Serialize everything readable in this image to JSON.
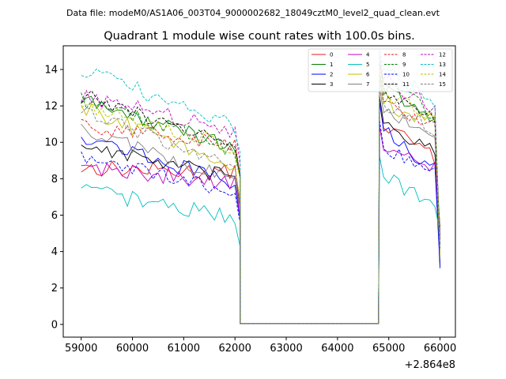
{
  "chart_data": {
    "type": "line",
    "suptitle": "Data file: modeM0/AS1A06_003T04_9000002682_18049cztM0_level2_quad_clean.evt",
    "title": "Quadrant 1 module wise count rates with 100.0s bins.",
    "xlabel": "",
    "ylabel": "",
    "x_offset_label": "+2.864e8",
    "xlim": [
      58650,
      66300
    ],
    "ylim": [
      -0.7,
      15.3
    ],
    "xticks": [
      59000,
      60000,
      61000,
      62000,
      63000,
      64000,
      65000,
      66000
    ],
    "xtick_labels": [
      "59000",
      "60000",
      "61000",
      "62000",
      "63000",
      "64000",
      "65000",
      "66000"
    ],
    "yticks": [
      0,
      2,
      4,
      6,
      8,
      10,
      12,
      14
    ],
    "ytick_labels": [
      "0",
      "2",
      "4",
      "6",
      "8",
      "10",
      "12",
      "14"
    ],
    "legend_position": "top-right",
    "bin_width_s": 100,
    "gap_segment": {
      "x": [
        62100,
        62200,
        64700,
        64800
      ],
      "value": 0.05
    },
    "segment1": {
      "x_start": 59000,
      "x_end": 62100,
      "step": 100
    },
    "segment2": {
      "x_start": 64800,
      "x_end": 66000,
      "step": 100
    },
    "series": [
      {
        "name": "0",
        "color": "#e41a1c",
        "dash": "solid",
        "level1": 8.6,
        "slope1": -0.3,
        "level2": 11.0,
        "slope2": 2.0
      },
      {
        "name": "1",
        "color": "#008000",
        "dash": "solid",
        "level1": 12.3,
        "slope1": -2.6,
        "level2": 12.8,
        "slope2": 1.7
      },
      {
        "name": "2",
        "color": "#0000ff",
        "dash": "solid",
        "level1": 10.4,
        "slope1": -2.8,
        "level2": 10.8,
        "slope2": 2.6
      },
      {
        "name": "3",
        "color": "#000000",
        "dash": "solid",
        "level1": 9.9,
        "slope1": -2.0,
        "level2": 11.2,
        "slope2": 2.0
      },
      {
        "name": "4",
        "color": "#bf00bf",
        "dash": "solid",
        "level1": 8.7,
        "slope1": -1.0,
        "level2": 9.7,
        "slope2": 1.3
      },
      {
        "name": "5",
        "color": "#00bfbf",
        "dash": "solid",
        "level1": 7.4,
        "slope1": -1.6,
        "level2": 8.2,
        "slope2": 1.8
      },
      {
        "name": "6",
        "color": "#bfbf00",
        "dash": "solid",
        "level1": 11.9,
        "slope1": -3.3,
        "level2": 12.2,
        "slope2": 1.3
      },
      {
        "name": "7",
        "color": "#808080",
        "dash": "solid",
        "level1": 10.8,
        "slope1": -3.0,
        "level2": 11.7,
        "slope2": 1.4
      },
      {
        "name": "8",
        "color": "#e41a1c",
        "dash": "dashed",
        "level1": 11.0,
        "slope1": -1.2,
        "level2": 12.3,
        "slope2": 1.6
      },
      {
        "name": "9",
        "color": "#008000",
        "dash": "dashed",
        "level1": 12.4,
        "slope1": -2.9,
        "level2": 13.3,
        "slope2": 1.9
      },
      {
        "name": "10",
        "color": "#0000ff",
        "dash": "dashed",
        "level1": 9.1,
        "slope1": -1.8,
        "level2": 9.7,
        "slope2": 1.4
      },
      {
        "name": "11",
        "color": "#000000",
        "dash": "dashed",
        "level1": 12.6,
        "slope1": -3.0,
        "level2": 13.0,
        "slope2": 1.8
      },
      {
        "name": "12",
        "color": "#bf00bf",
        "dash": "dashed",
        "level1": 12.6,
        "slope1": -2.1,
        "level2": 13.5,
        "slope2": 1.8
      },
      {
        "name": "13",
        "color": "#00bfbf",
        "dash": "dashed",
        "level1": 14.0,
        "slope1": -3.2,
        "level2": 14.0,
        "slope2": 1.9
      },
      {
        "name": "14",
        "color": "#bfbf00",
        "dash": "dashed",
        "level1": 12.2,
        "slope1": -2.6,
        "level2": 12.7,
        "slope2": 1.5
      },
      {
        "name": "15",
        "color": "#808080",
        "dash": "dashed",
        "level1": 11.8,
        "slope1": -3.3,
        "level2": 12.0,
        "slope2": 1.4
      }
    ]
  }
}
